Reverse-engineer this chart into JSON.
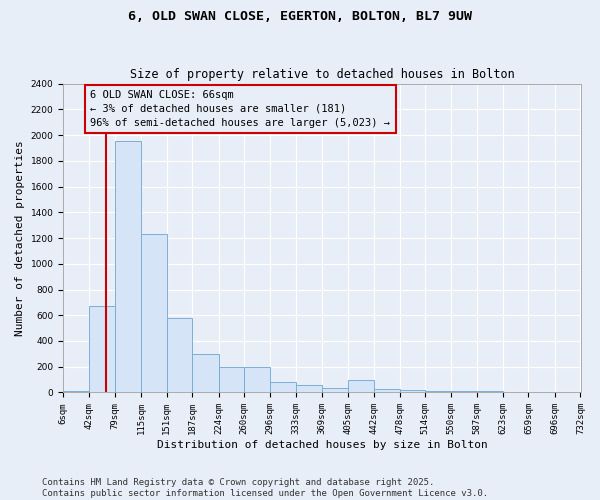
{
  "title_line1": "6, OLD SWAN CLOSE, EGERTON, BOLTON, BL7 9UW",
  "title_line2": "Size of property relative to detached houses in Bolton",
  "xlabel": "Distribution of detached houses by size in Bolton",
  "ylabel": "Number of detached properties",
  "bar_edges": [
    6,
    42,
    79,
    115,
    151,
    187,
    224,
    260,
    296,
    333,
    369,
    405,
    442,
    478,
    514,
    550,
    587,
    623,
    659,
    696,
    732
  ],
  "bar_heights": [
    10,
    675,
    1950,
    1230,
    575,
    300,
    200,
    200,
    85,
    55,
    35,
    95,
    30,
    20,
    15,
    15,
    8,
    6,
    4,
    3
  ],
  "bar_color": "#d6e4f7",
  "bar_edge_color": "#7bafd4",
  "bg_color": "#e8eef7",
  "grid_color": "#ffffff",
  "vline_x": 66,
  "vline_color": "#cc0000",
  "annotation_text": "6 OLD SWAN CLOSE: 66sqm\n← 3% of detached houses are smaller (181)\n96% of semi-detached houses are larger (5,023) →",
  "annotation_box_color": "#cc0000",
  "ylim": [
    0,
    2400
  ],
  "yticks": [
    0,
    200,
    400,
    600,
    800,
    1000,
    1200,
    1400,
    1600,
    1800,
    2000,
    2200,
    2400
  ],
  "xtick_labels": [
    "6sqm",
    "42sqm",
    "79sqm",
    "115sqm",
    "151sqm",
    "187sqm",
    "224sqm",
    "260sqm",
    "296sqm",
    "333sqm",
    "369sqm",
    "405sqm",
    "442sqm",
    "478sqm",
    "514sqm",
    "550sqm",
    "587sqm",
    "623sqm",
    "659sqm",
    "696sqm",
    "732sqm"
  ],
  "footnote": "Contains HM Land Registry data © Crown copyright and database right 2025.\nContains public sector information licensed under the Open Government Licence v3.0.",
  "title_fontsize": 9.5,
  "subtitle_fontsize": 8.5,
  "axis_label_fontsize": 8,
  "tick_fontsize": 6.5,
  "annotation_fontsize": 7.5,
  "footnote_fontsize": 6.5
}
